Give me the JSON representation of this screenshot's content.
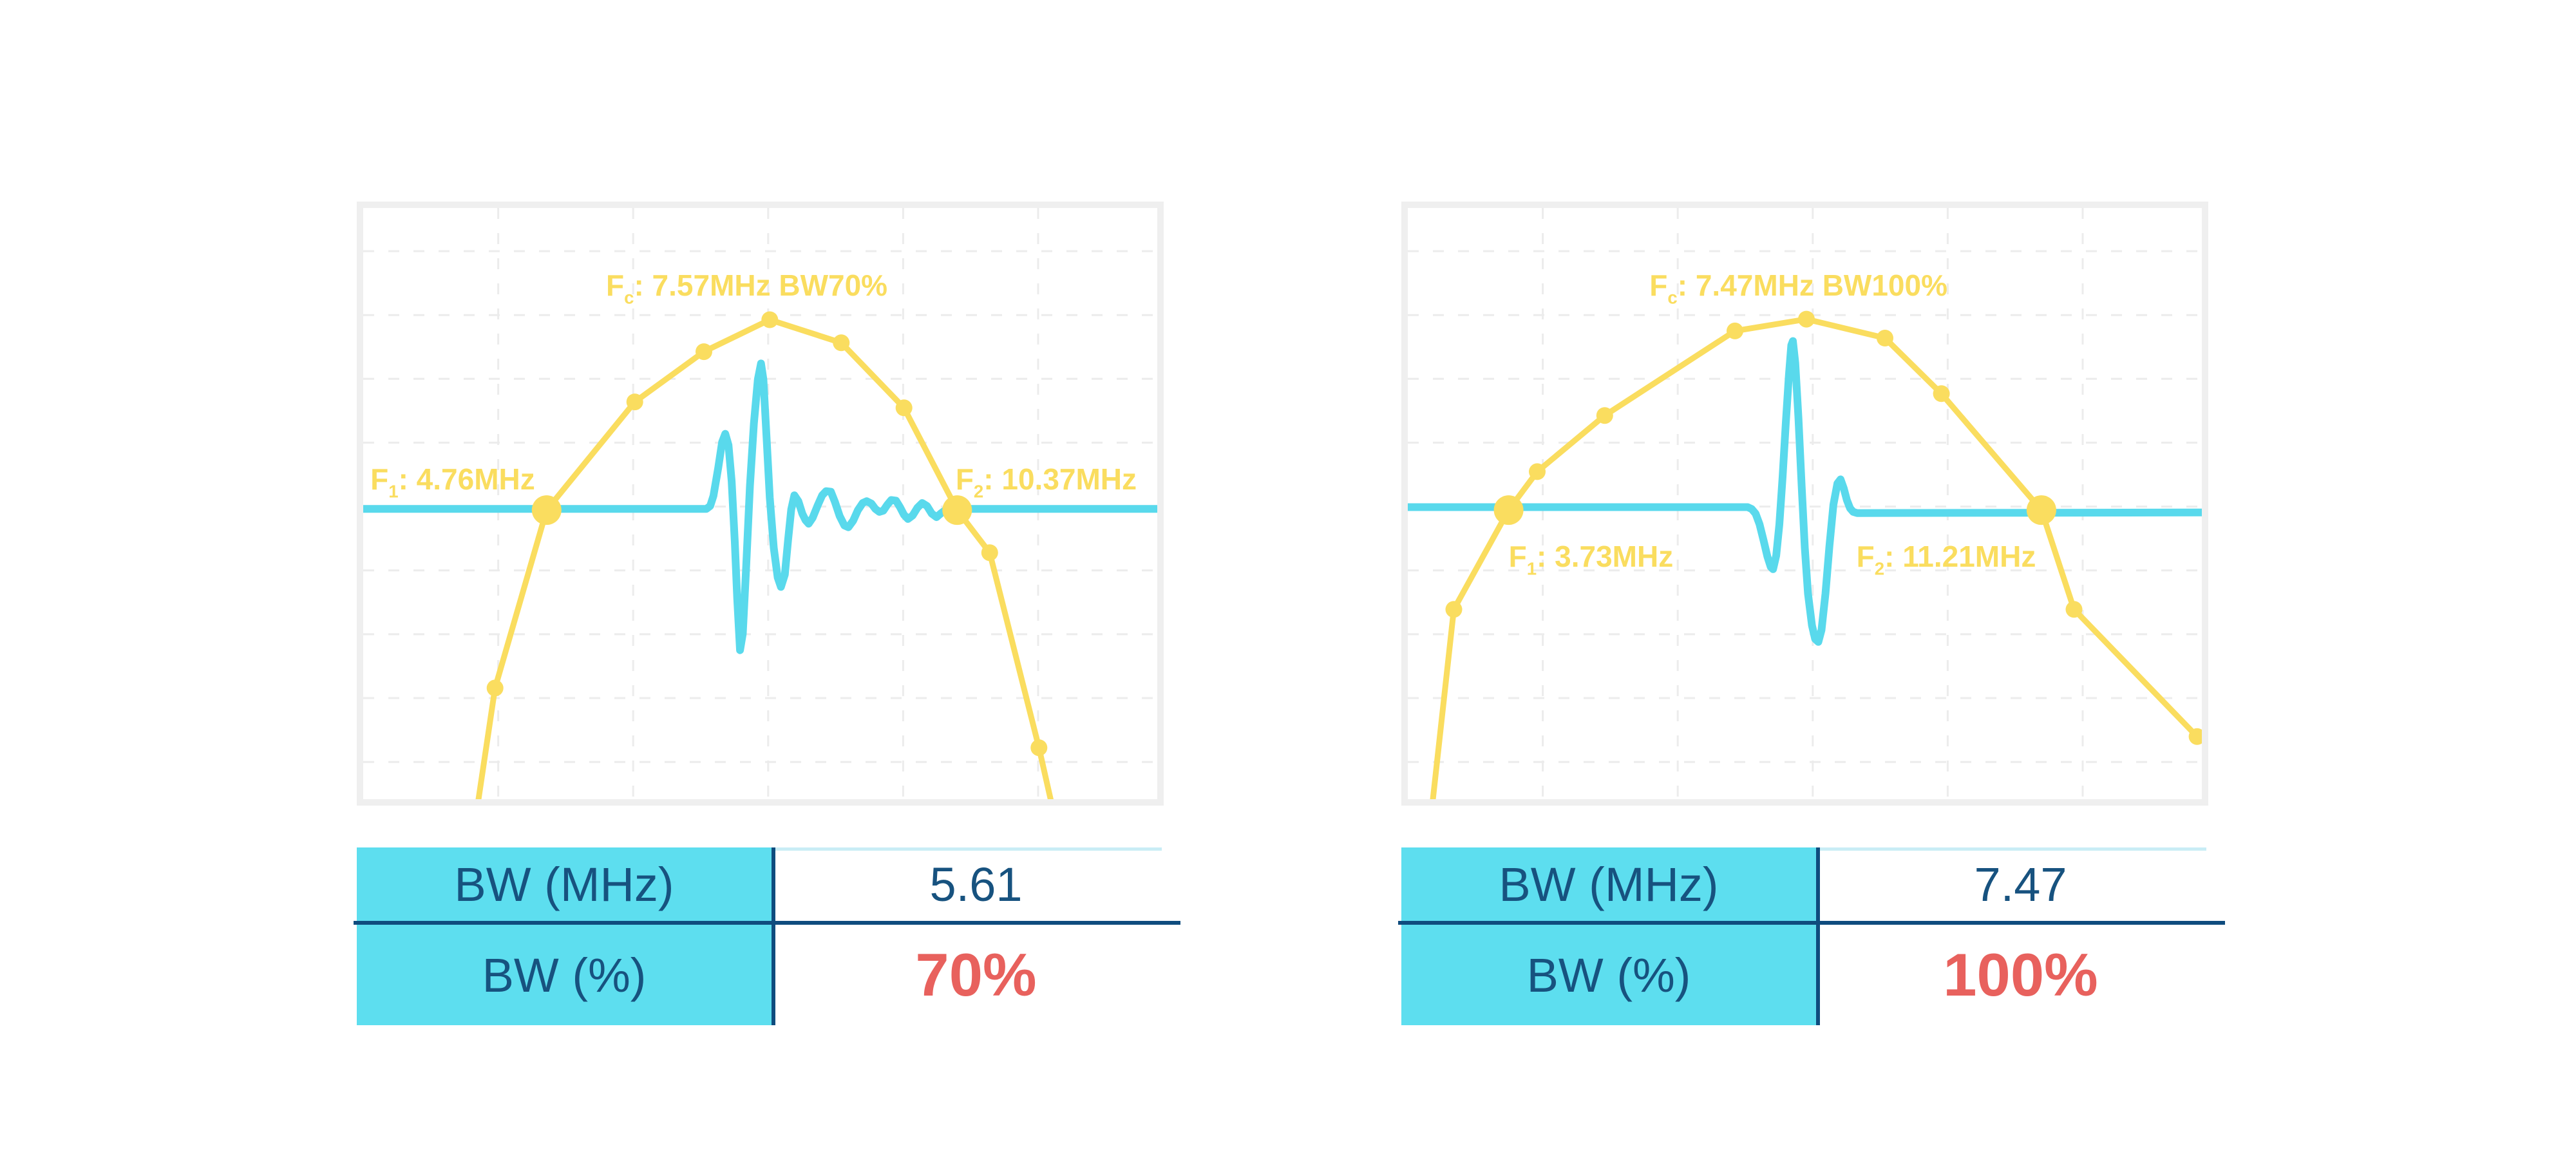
{
  "colors": {
    "yellow": "#FADD5F",
    "cyan": "#59D9EC",
    "table_cyan": "#5DDEEF",
    "text_blue": "#17527F",
    "divider_blue": "#0F4C7E",
    "value_red": "#E8615D",
    "chart_border": "#EFEFEF",
    "grid_line": "#ECECEC",
    "table_topline": "#C9EDF5",
    "background": "#FFFFFF"
  },
  "grid": {
    "v_norm": [
      0.17,
      0.34,
      0.51,
      0.68,
      0.85
    ],
    "h_norm": [
      0.073,
      0.181,
      0.289,
      0.397,
      0.505,
      0.613,
      0.721,
      0.829,
      0.937
    ]
  },
  "panels": [
    {
      "annotations": {
        "fc": {
          "pre": "F",
          "sub": "c",
          "rest": ": 7.57MHz BW70%"
        },
        "f1": {
          "pre": "F",
          "sub": "1",
          "rest": ": 4.76MHz"
        },
        "f2": {
          "pre": "F",
          "sub": "2",
          "rest": ": 10.37MHz"
        }
      },
      "table": {
        "rows": [
          {
            "label": "BW (MHz)",
            "value": "5.61"
          },
          {
            "label": "BW (%)",
            "value": "70%"
          }
        ]
      }
    },
    {
      "annotations": {
        "fc": {
          "pre": "F",
          "sub": "c",
          "rest": ": 7.47MHz BW100%"
        },
        "f1": {
          "pre": "F",
          "sub": "1",
          "rest": ": 3.73MHz"
        },
        "f2": {
          "pre": "F",
          "sub": "2",
          "rest": ": 11.21MHz"
        }
      },
      "table": {
        "rows": [
          {
            "label": "BW (MHz)",
            "value": "7.47"
          },
          {
            "label": "BW (%)",
            "value": "100%"
          }
        ]
      }
    }
  ],
  "chart_data": [
    {
      "type": "line",
      "title": "Fc: 7.57MHz BW70%",
      "center_frequency_mhz": 7.57,
      "f1_mhz": 4.76,
      "f2_mhz": 10.37,
      "bandwidth_mhz": 5.61,
      "bandwidth_percent": 70,
      "axis_labels_visible": false,
      "grid_style": "dashed",
      "legend": "none",
      "series": [
        {
          "name": "frequency-spectrum-envelope",
          "color_key": "yellow",
          "points_norm": [
            [
              0.143,
              1.02
            ],
            [
              0.166,
              0.812
            ],
            [
              0.231,
              0.511
            ],
            [
              0.342,
              0.328
            ],
            [
              0.429,
              0.243
            ],
            [
              0.512,
              0.189
            ],
            [
              0.602,
              0.228
            ],
            [
              0.681,
              0.338
            ],
            [
              0.748,
              0.511
            ],
            [
              0.789,
              0.583
            ],
            [
              0.851,
              0.913
            ],
            [
              0.869,
              1.02
            ]
          ],
          "markers_norm": [
            [
              0.166,
              0.812
            ],
            [
              0.342,
              0.328
            ],
            [
              0.429,
              0.243
            ],
            [
              0.512,
              0.189
            ],
            [
              0.602,
              0.228
            ],
            [
              0.681,
              0.338
            ],
            [
              0.789,
              0.583
            ],
            [
              0.851,
              0.913
            ]
          ],
          "band_edge_markers_norm": [
            [
              0.231,
              0.511
            ],
            [
              0.748,
              0.511
            ]
          ]
        },
        {
          "name": "pulse-waveform",
          "color_key": "cyan",
          "points_norm": [
            [
              0,
              0.509
            ],
            [
              0.432,
              0.509
            ],
            [
              0.437,
              0.504
            ],
            [
              0.441,
              0.487
            ],
            [
              0.447,
              0.44
            ],
            [
              0.452,
              0.396
            ],
            [
              0.456,
              0.382
            ],
            [
              0.46,
              0.401
            ],
            [
              0.464,
              0.462
            ],
            [
              0.468,
              0.565
            ],
            [
              0.471,
              0.66
            ],
            [
              0.4745,
              0.748
            ],
            [
              0.478,
              0.72
            ],
            [
              0.482,
              0.615
            ],
            [
              0.487,
              0.47
            ],
            [
              0.492,
              0.365
            ],
            [
              0.497,
              0.29
            ],
            [
              0.501,
              0.263
            ],
            [
              0.504,
              0.29
            ],
            [
              0.508,
              0.39
            ],
            [
              0.512,
              0.49
            ],
            [
              0.517,
              0.575
            ],
            [
              0.522,
              0.625
            ],
            [
              0.526,
              0.641
            ],
            [
              0.531,
              0.62
            ],
            [
              0.535,
              0.562
            ],
            [
              0.539,
              0.51
            ],
            [
              0.543,
              0.486
            ],
            [
              0.548,
              0.496
            ],
            [
              0.553,
              0.517
            ],
            [
              0.557,
              0.528
            ],
            [
              0.561,
              0.534
            ],
            [
              0.566,
              0.524
            ],
            [
              0.572,
              0.504
            ],
            [
              0.578,
              0.486
            ],
            [
              0.583,
              0.479
            ],
            [
              0.589,
              0.48
            ],
            [
              0.594,
              0.497
            ],
            [
              0.6,
              0.521
            ],
            [
              0.606,
              0.537
            ],
            [
              0.611,
              0.54
            ],
            [
              0.617,
              0.529
            ],
            [
              0.623,
              0.511
            ],
            [
              0.629,
              0.499
            ],
            [
              0.634,
              0.496
            ],
            [
              0.64,
              0.5
            ],
            [
              0.645,
              0.509
            ],
            [
              0.65,
              0.514
            ],
            [
              0.655,
              0.512
            ],
            [
              0.66,
              0.502
            ],
            [
              0.665,
              0.494
            ],
            [
              0.671,
              0.495
            ],
            [
              0.676,
              0.506
            ],
            [
              0.681,
              0.519
            ],
            [
              0.686,
              0.526
            ],
            [
              0.692,
              0.52
            ],
            [
              0.698,
              0.507
            ],
            [
              0.704,
              0.499
            ],
            [
              0.71,
              0.504
            ],
            [
              0.716,
              0.517
            ],
            [
              0.722,
              0.523
            ],
            [
              0.728,
              0.516
            ],
            [
              0.735,
              0.509
            ],
            [
              1,
              0.509
            ]
          ]
        }
      ]
    },
    {
      "type": "line",
      "title": "Fc: 7.47MHz BW100%",
      "center_frequency_mhz": 7.47,
      "f1_mhz": 3.73,
      "f2_mhz": 11.21,
      "bandwidth_mhz": 7.47,
      "bandwidth_percent": 100,
      "axis_labels_visible": false,
      "grid_style": "dashed",
      "legend": "none",
      "series": [
        {
          "name": "frequency-spectrum-envelope",
          "color_key": "yellow",
          "points_norm": [
            [
              0.03,
              1.02
            ],
            [
              0.058,
              0.679
            ],
            [
              0.127,
              0.511
            ],
            [
              0.163,
              0.446
            ],
            [
              0.248,
              0.351
            ],
            [
              0.412,
              0.208
            ],
            [
              0.502,
              0.188
            ],
            [
              0.601,
              0.22
            ],
            [
              0.672,
              0.314
            ],
            [
              0.798,
              0.511
            ],
            [
              0.839,
              0.679
            ],
            [
              0.994,
              0.894
            ]
          ],
          "markers_norm": [
            [
              0.058,
              0.679
            ],
            [
              0.163,
              0.446
            ],
            [
              0.248,
              0.351
            ],
            [
              0.412,
              0.208
            ],
            [
              0.502,
              0.188
            ],
            [
              0.601,
              0.22
            ],
            [
              0.672,
              0.314
            ],
            [
              0.839,
              0.679
            ],
            [
              0.994,
              0.894
            ]
          ],
          "band_edge_markers_norm": [
            [
              0.127,
              0.511
            ],
            [
              0.798,
              0.511
            ]
          ]
        },
        {
          "name": "pulse-waveform",
          "color_key": "cyan",
          "points_norm": [
            [
              0,
              0.506
            ],
            [
              0.428,
              0.506
            ],
            [
              0.433,
              0.509
            ],
            [
              0.438,
              0.517
            ],
            [
              0.443,
              0.535
            ],
            [
              0.448,
              0.562
            ],
            [
              0.453,
              0.59
            ],
            [
              0.457,
              0.607
            ],
            [
              0.46,
              0.611
            ],
            [
              0.464,
              0.588
            ],
            [
              0.468,
              0.535
            ],
            [
              0.472,
              0.455
            ],
            [
              0.476,
              0.365
            ],
            [
              0.48,
              0.283
            ],
            [
              0.483,
              0.232
            ],
            [
              0.485,
              0.225
            ],
            [
              0.488,
              0.262
            ],
            [
              0.492,
              0.355
            ],
            [
              0.496,
              0.47
            ],
            [
              0.5,
              0.575
            ],
            [
              0.504,
              0.652
            ],
            [
              0.509,
              0.706
            ],
            [
              0.513,
              0.729
            ],
            [
              0.517,
              0.734
            ],
            [
              0.521,
              0.714
            ],
            [
              0.526,
              0.652
            ],
            [
              0.531,
              0.572
            ],
            [
              0.536,
              0.502
            ],
            [
              0.541,
              0.466
            ],
            [
              0.545,
              0.459
            ],
            [
              0.549,
              0.474
            ],
            [
              0.553,
              0.494
            ],
            [
              0.557,
              0.508
            ],
            [
              0.561,
              0.514
            ],
            [
              0.566,
              0.516
            ],
            [
              1,
              0.515
            ]
          ]
        }
      ]
    }
  ]
}
